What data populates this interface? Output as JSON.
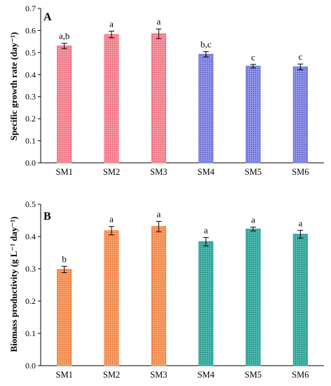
{
  "chart_data": [
    {
      "type": "bar",
      "panel_label": "A",
      "ylabel": "Specific growth rate (day⁻¹)",
      "ylim": [
        0,
        0.7
      ],
      "yticks": [
        "0.0",
        "0.1",
        "0.2",
        "0.3",
        "0.4",
        "0.5",
        "0.6",
        "0.7"
      ],
      "categories": [
        "SM1",
        "SM2",
        "SM3",
        "SM4",
        "SM5",
        "SM6"
      ],
      "values": [
        0.53,
        0.582,
        0.585,
        0.492,
        0.438,
        0.435
      ],
      "errors": [
        0.012,
        0.015,
        0.022,
        0.012,
        0.008,
        0.013
      ],
      "significance": [
        "a,b",
        "a",
        "a",
        "b,c",
        "c",
        "c"
      ],
      "bar_colors": [
        "#f47b89",
        "#f47b89",
        "#f47b89",
        "#6f74e0",
        "#6f74e0",
        "#6f74e0"
      ],
      "grid": false
    },
    {
      "type": "bar",
      "panel_label": "B",
      "ylabel": "Biomass productivity (g L⁻¹ day⁻¹)",
      "ylim": [
        0,
        0.5
      ],
      "yticks": [
        "0.0",
        "0.1",
        "0.2",
        "0.3",
        "0.4",
        "0.5"
      ],
      "categories": [
        "SM1",
        "SM2",
        "SM3",
        "SM4",
        "SM5",
        "SM6"
      ],
      "values": [
        0.298,
        0.418,
        0.431,
        0.384,
        0.423,
        0.407
      ],
      "errors": [
        0.01,
        0.013,
        0.016,
        0.013,
        0.006,
        0.012
      ],
      "significance": [
        "b",
        "a",
        "a",
        "a",
        "a",
        "a"
      ],
      "bar_colors": [
        "#f4894a",
        "#f4894a",
        "#f4894a",
        "#2aa39a",
        "#2aa39a",
        "#2aa39a"
      ],
      "grid": false
    }
  ]
}
